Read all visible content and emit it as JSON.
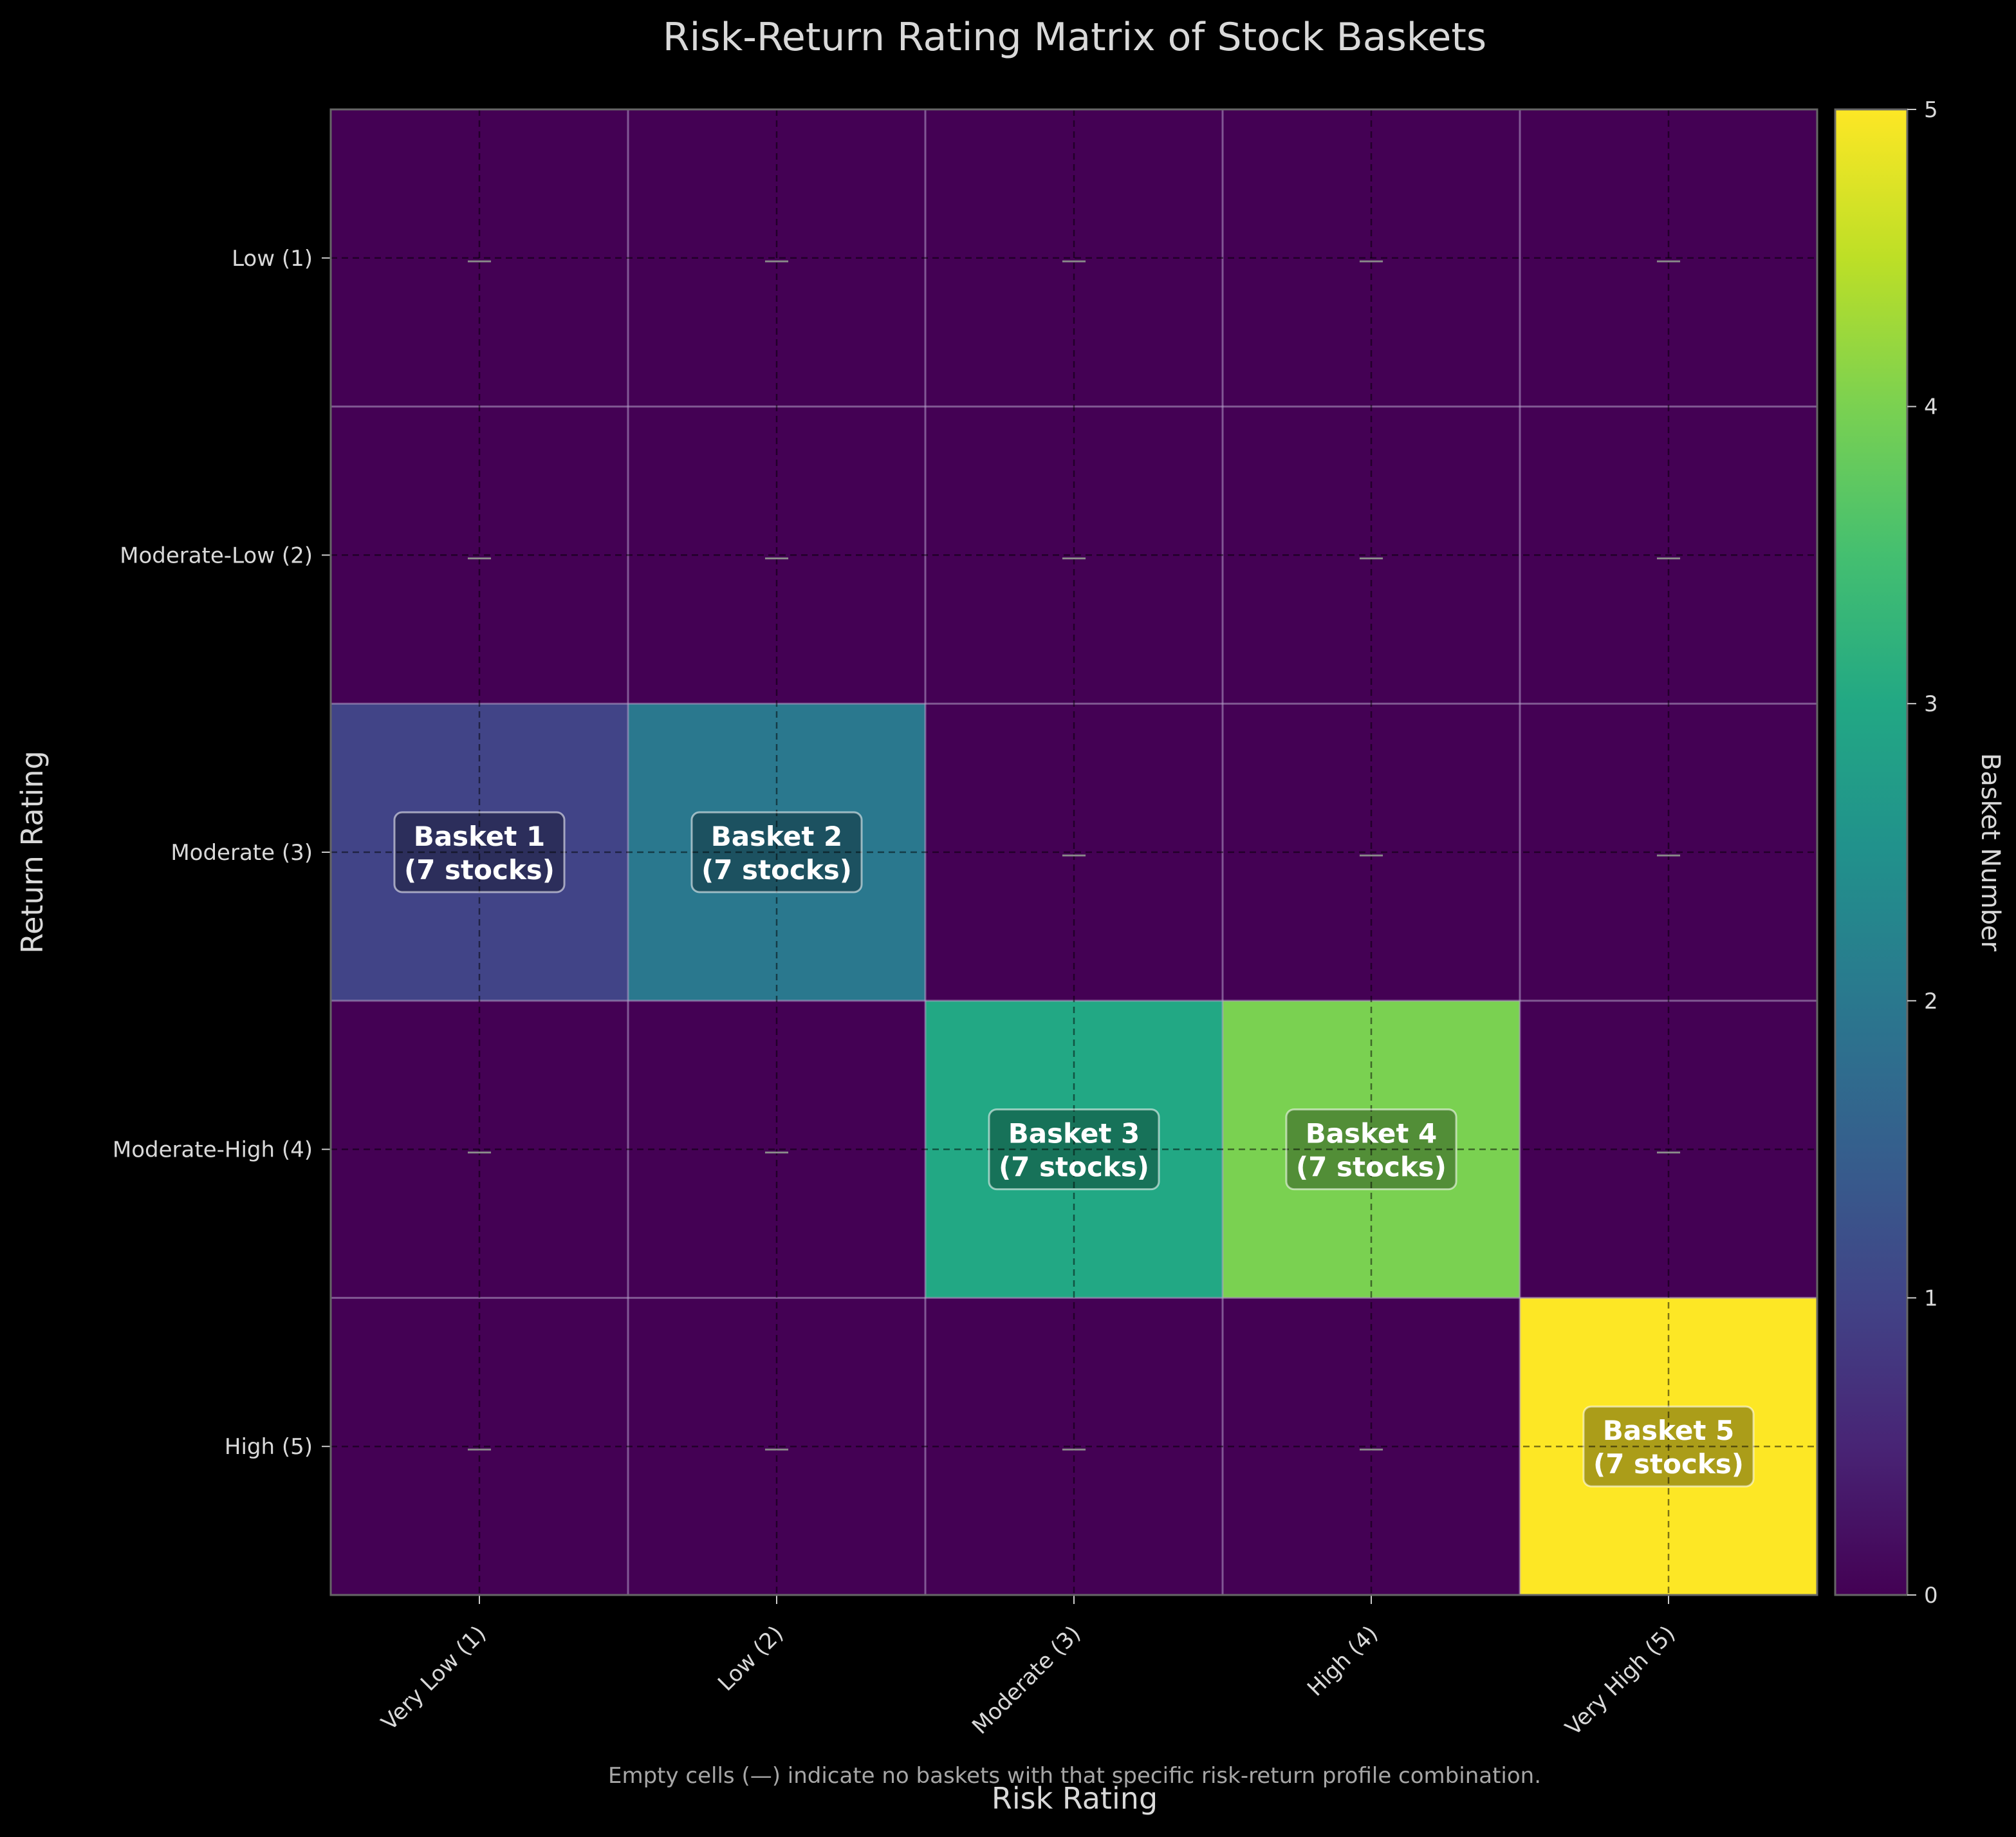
{
  "chart_data": {
    "type": "heatmap",
    "title": "Risk-Return Rating Matrix of Stock Baskets",
    "xlabel": "Risk Rating",
    "ylabel": "Return Rating",
    "x_categories": [
      "Very Low (1)",
      "Low (2)",
      "Moderate (3)",
      "High (4)",
      "Very High (5)"
    ],
    "y_categories": [
      "Low (1)",
      "Moderate-Low (2)",
      "Moderate (3)",
      "Moderate-High (4)",
      "High (5)"
    ],
    "values": [
      [
        0,
        0,
        0,
        0,
        0
      ],
      [
        0,
        0,
        0,
        0,
        0
      ],
      [
        1,
        2,
        0,
        0,
        0
      ],
      [
        0,
        0,
        3,
        4,
        0
      ],
      [
        0,
        0,
        0,
        0,
        5
      ]
    ],
    "cell_labels": [
      [
        "—",
        "—",
        "—",
        "—",
        "—"
      ],
      [
        "—",
        "—",
        "—",
        "—",
        "—"
      ],
      [
        "Basket 1\n(7 stocks)",
        "Basket 2\n(7 stocks)",
        "—",
        "—",
        "—"
      ],
      [
        "—",
        "—",
        "Basket 3\n(7 stocks)",
        "Basket 4\n(7 stocks)",
        "—"
      ],
      [
        "—",
        "—",
        "—",
        "—",
        "Basket 5\n(7 stocks)"
      ]
    ],
    "colorbar": {
      "label": "Basket Number",
      "range": [
        0,
        5
      ],
      "ticks": [
        "0",
        "1",
        "2",
        "3",
        "4",
        "5"
      ],
      "colormap": "viridis"
    },
    "grid": true,
    "footnote": "Empty cells (—) indicate no baskets with that specific risk-return profile combination."
  }
}
